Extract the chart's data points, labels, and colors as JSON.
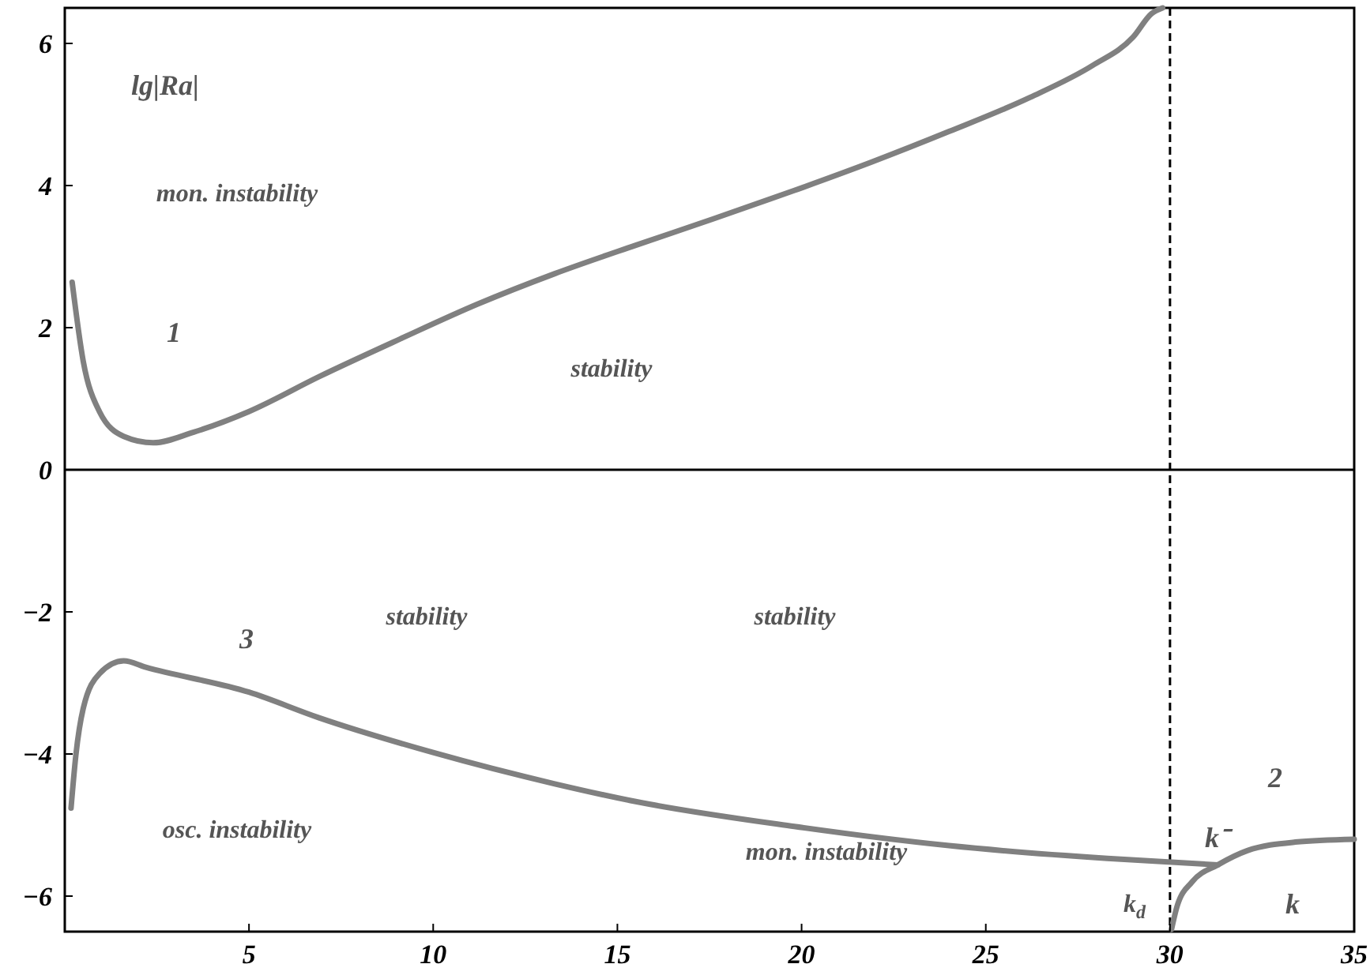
{
  "chart_data": {
    "type": "line",
    "ylabel": "lg|Ra|",
    "xlim": [
      0,
      35
    ],
    "ylim": [
      -6.5,
      6.5
    ],
    "xticks": [
      5,
      10,
      15,
      20,
      25,
      30,
      35
    ],
    "yticks": [
      -6,
      -4,
      -2,
      0,
      2,
      4,
      6
    ],
    "grid": false,
    "marker": "none",
    "line_style": "solid",
    "series": [
      {
        "color": "#808080",
        "x": [
          0.2,
          0.5,
          0.94,
          1.6,
          2.4,
          3.5,
          5,
          6.9,
          9.1,
          11.2,
          13.3,
          15.5,
          17.6,
          19.8,
          21.9,
          24.0,
          26.2,
          27.9,
          29.0,
          29.5,
          29.8
        ],
        "values": [
          2.64,
          1.53,
          0.82,
          0.47,
          0.38,
          0.53,
          0.82,
          1.31,
          1.84,
          2.33,
          2.76,
          3.16,
          3.53,
          3.93,
          4.33,
          4.76,
          5.24,
          5.69,
          6.09,
          6.42,
          6.5
        ]
      },
      {
        "color": "#808080",
        "x": [
          0.17,
          0.3,
          0.5,
          0.94,
          1.6,
          2.2,
          5,
          6.9,
          10,
          13.3,
          15.5,
          19.8,
          24.0,
          28.3,
          31.3
        ],
        "values": [
          -4.76,
          -4.02,
          -3.36,
          -2.87,
          -2.69,
          -2.78,
          -3.13,
          -3.49,
          -3.98,
          -4.42,
          -4.67,
          -5.02,
          -5.29,
          -5.47,
          -5.56
        ]
      },
      {
        "color": "#808080",
        "x": [
          30.04,
          30.2,
          30.6,
          31.3,
          32.1,
          33.4,
          35
        ],
        "values": [
          -6.47,
          -6.13,
          -5.8,
          -5.56,
          -5.36,
          -5.24,
          -5.2
        ]
      }
    ],
    "ref_lines": [
      {
        "axis": "x",
        "value": 30,
        "color": "#000000",
        "line_style": "dashed"
      },
      {
        "axis": "y",
        "value": 0,
        "color": "#000000",
        "line_style": "solid"
      }
    ],
    "annotations": [
      "mon. instability",
      "1",
      "stability",
      "3",
      "stability",
      "stability",
      "osc. instability",
      "mon. instability",
      "2",
      "k⁻",
      "k$_{d}$",
      "k"
    ]
  }
}
